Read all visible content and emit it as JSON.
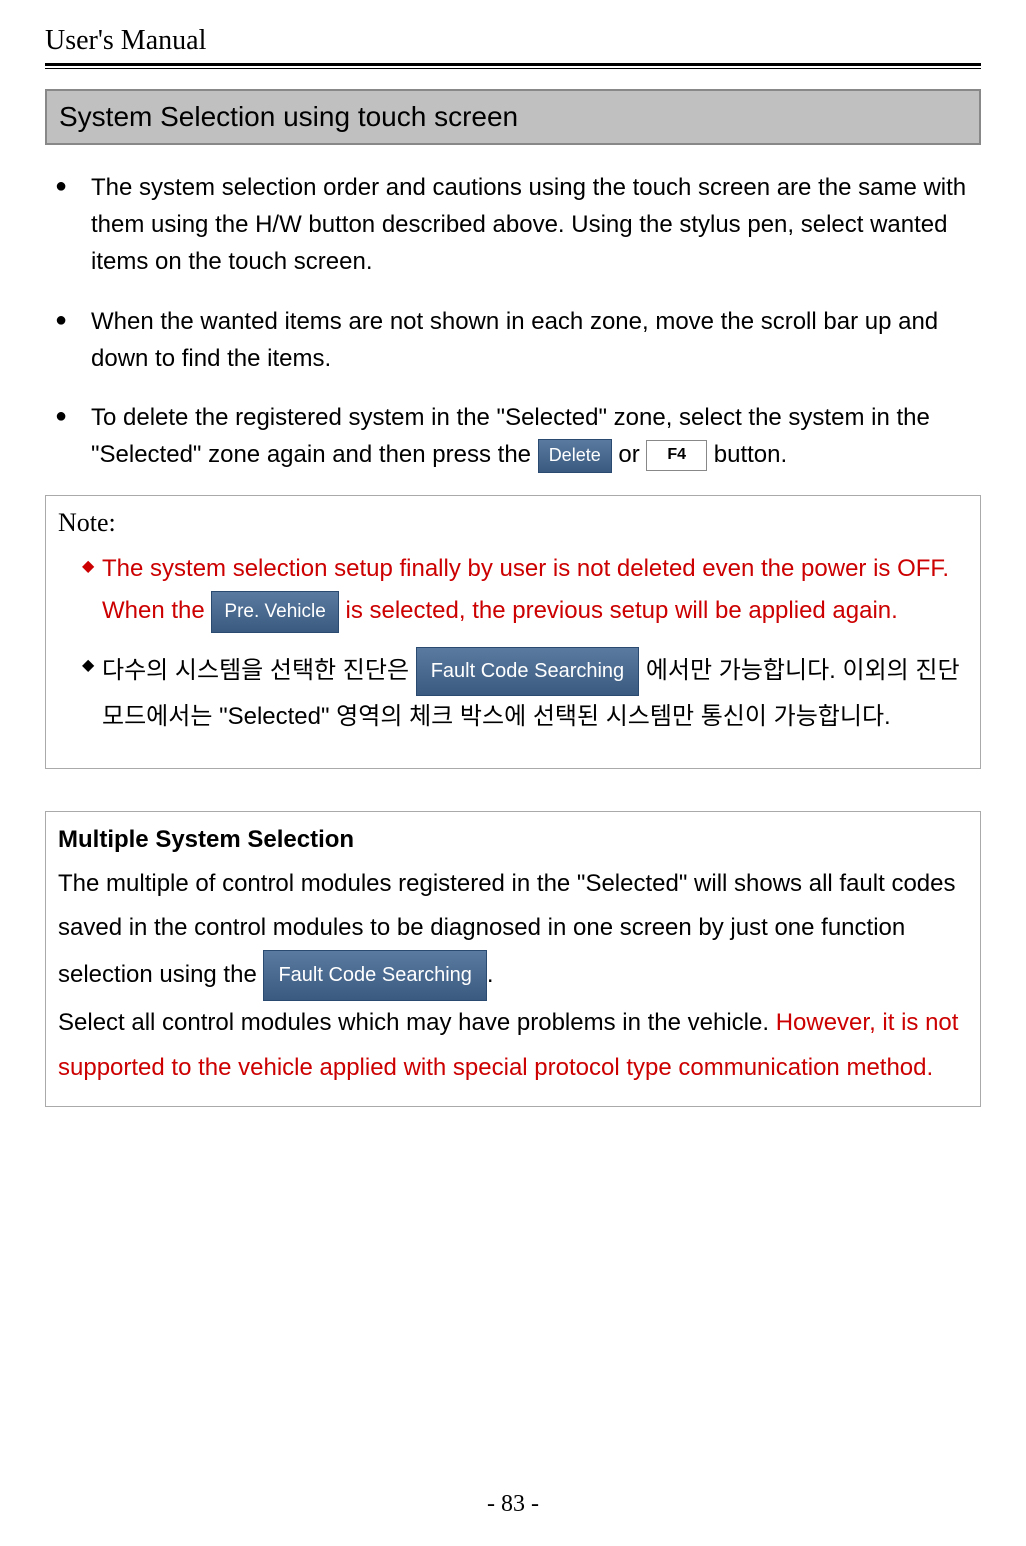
{
  "header": {
    "title": "User's Manual"
  },
  "section": {
    "title": "System Selection using touch screen"
  },
  "bullets": [
    {
      "text": "The system selection order and cautions using the touch screen are the same with them using the H/W button described above. Using the stylus pen, select wanted items on the touch screen."
    },
    {
      "text": "When the wanted items are not shown in each zone, move the scroll bar up and down to find the items."
    },
    {
      "pretext": " To delete the registered system in the \"Selected\" zone, select the system in the \"Selected\" zone again and then press the ",
      "between": " or ",
      "posttext": " button."
    }
  ],
  "buttons": {
    "delete": "Delete",
    "f4": "F4",
    "preVehicle": "Pre. Vehicle",
    "faultCode": "Fault Code Searching"
  },
  "note": {
    "title": "Note:",
    "item1_a": "The system selection setup finally by user is not deleted even the power is OFF. When the ",
    "item1_b": " is selected, the previous setup will be applied again.",
    "item2_a": "다수의  시스템을  선택한  진단은 ",
    "item2_b": " 에서만  가능합니다.  이외의  진단  모드에서는 \"Selected\" 영역의  체크  박스에  선택된  시스템만  통신이  가능합니다."
  },
  "multi": {
    "title": "Multiple System Selection",
    "para1_a": "  The multiple of control modules registered in the \"Selected\" will shows all fault codes saved in the control modules to be diagnosed in one screen by just one function selection using the ",
    "para1_b": ".",
    "para2": "  Select all control modules which may have problems in the vehicle. ",
    "warning": "However, it is not supported to the vehicle applied with special protocol type communication method."
  },
  "page": {
    "number": "- 83 -"
  },
  "colors": {
    "redText": "#cc0000",
    "headerBg": "#c0c0c0",
    "buttonBg1": "#5a7aa0",
    "buttonBg2": "#3a5a80"
  }
}
